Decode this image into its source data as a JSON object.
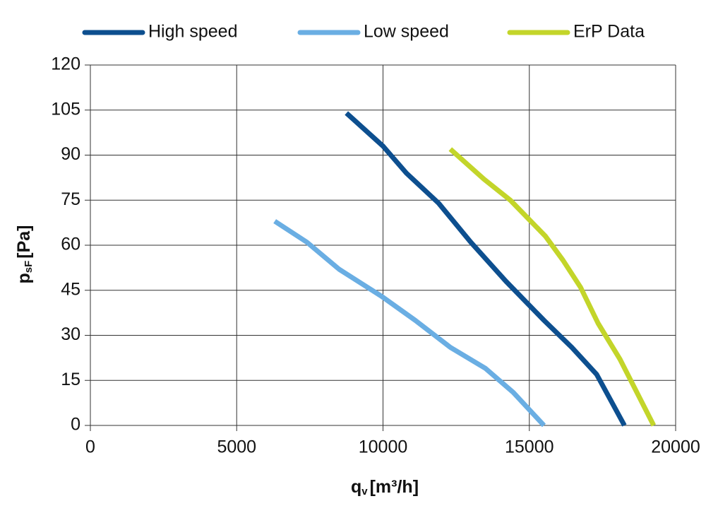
{
  "chart_data": {
    "type": "line",
    "x_label": "q",
    "x_label_sub": "v",
    "x_label_unit": "[m³/h]",
    "y_label": "p",
    "y_label_sub": "sF",
    "y_label_unit": "[Pa]",
    "xlim": [
      0,
      20000
    ],
    "xticks": [
      0,
      5000,
      10000,
      15000,
      20000
    ],
    "ylim": [
      0,
      120
    ],
    "yticks": [
      0,
      15,
      30,
      45,
      60,
      75,
      90,
      105,
      120
    ],
    "grid": true,
    "legend": "top",
    "series": [
      {
        "name": "High speed",
        "color": "#0d4f8f",
        "x": [
          8750,
          10000,
          10800,
          11900,
          13000,
          14200,
          15500,
          16450,
          17300,
          18250
        ],
        "values": [
          104,
          93,
          84,
          74,
          61,
          48,
          35,
          26,
          17,
          0
        ]
      },
      {
        "name": "Low speed",
        "color": "#6aaee3",
        "x": [
          6300,
          7400,
          8500,
          9950,
          11100,
          12300,
          13500,
          14450,
          15500
        ],
        "values": [
          68,
          61,
          52,
          43,
          35,
          26,
          19,
          11,
          0
        ]
      },
      {
        "name": "ErP Data",
        "color": "#c3d52a",
        "x": [
          12300,
          13450,
          14350,
          14950,
          15550,
          16150,
          16750,
          17350,
          18100,
          19250
        ],
        "values": [
          92,
          82,
          75,
          69,
          63,
          55,
          46,
          34,
          22,
          0
        ]
      }
    ]
  }
}
